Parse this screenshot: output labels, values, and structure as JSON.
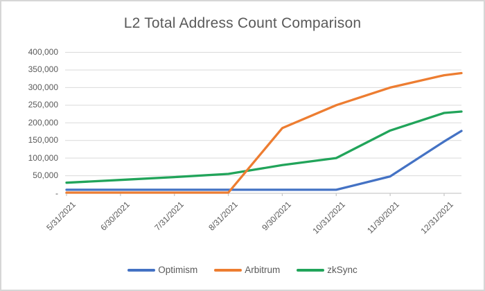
{
  "window": {
    "background": "#ffffff",
    "border_color": "#d6d6d6"
  },
  "chart_data": {
    "type": "line",
    "title": "L2 Total Address Count Comparison",
    "title_color": "#595959",
    "categories": [
      "5/31/2021",
      "6/30/2021",
      "7/31/2021",
      "8/31/2021",
      "9/30/2021",
      "10/31/2021",
      "11/30/2021",
      "12/31/2021"
    ],
    "series": [
      {
        "name": "Optimism",
        "color": "#4472C4",
        "values": [
          10000,
          10000,
          10000,
          10000,
          10000,
          10000,
          48000,
          147000
        ],
        "edge_value": 177000
      },
      {
        "name": "Arbitrum",
        "color": "#ED7D31",
        "values": [
          2000,
          2000,
          2000,
          2000,
          185000,
          250000,
          300000,
          335000
        ],
        "edge_value": 341000
      },
      {
        "name": "zkSync",
        "color": "#21A45A",
        "values": [
          30000,
          38000,
          46000,
          55000,
          80000,
          100000,
          178000,
          228000
        ],
        "edge_value": 232000
      }
    ],
    "draw_order": [
      "Optimism",
      "zkSync",
      "Arbitrum"
    ],
    "ylim": [
      0,
      400000
    ],
    "ytick_step": 50000,
    "ytick_labels": [
      "-",
      "50,000",
      "100,000",
      "150,000",
      "200,000",
      "250,000",
      "300,000",
      "350,000",
      "400,000"
    ],
    "grid": true,
    "grid_color": "#d9d9d9",
    "axis_color": "#c9c9c9",
    "label_color": "#595959",
    "legend_position": "bottom",
    "line_extends_past_last_tick": true
  }
}
